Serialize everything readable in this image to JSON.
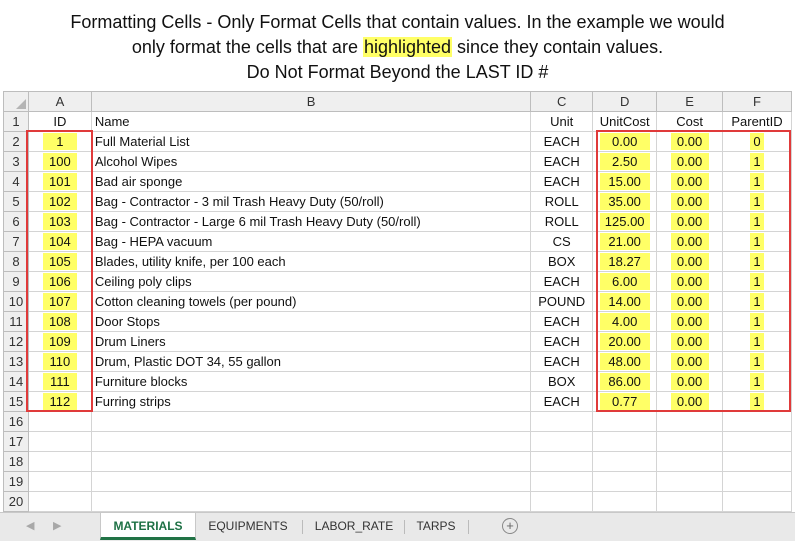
{
  "instructions": {
    "line1": "Formatting Cells -  Only Format Cells that contain values.  In the example we would",
    "line2_before": "only format the cells that are ",
    "line2_highlight": "highlighted",
    "line2_after": " since they contain values.",
    "line3": "Do Not Format Beyond the LAST ID #"
  },
  "colors": {
    "highlight": "#ffff66",
    "callout_border": "#e03a3a",
    "active_tab": "#217346"
  },
  "columns": [
    "A",
    "B",
    "C",
    "D",
    "E",
    "F"
  ],
  "headers": {
    "id": "ID",
    "name": "Name",
    "unit": "Unit",
    "unitcost": "UnitCost",
    "cost": "Cost",
    "parentid": "ParentID"
  },
  "rows": [
    {
      "n": "2",
      "id": "1",
      "name": "Full Material List",
      "unit": "EACH",
      "unitcost": "0.00",
      "cost": "0.00",
      "parentid": "0"
    },
    {
      "n": "3",
      "id": "100",
      "name": "Alcohol Wipes",
      "unit": "EACH",
      "unitcost": "2.50",
      "cost": "0.00",
      "parentid": "1"
    },
    {
      "n": "4",
      "id": "101",
      "name": "Bad air sponge",
      "unit": "EACH",
      "unitcost": "15.00",
      "cost": "0.00",
      "parentid": "1"
    },
    {
      "n": "5",
      "id": "102",
      "name": "Bag - Contractor - 3 mil Trash Heavy Duty (50/roll)",
      "unit": "ROLL",
      "unitcost": "35.00",
      "cost": "0.00",
      "parentid": "1"
    },
    {
      "n": "6",
      "id": "103",
      "name": "Bag - Contractor - Large 6 mil Trash Heavy Duty (50/roll)",
      "unit": "ROLL",
      "unitcost": "125.00",
      "cost": "0.00",
      "parentid": "1"
    },
    {
      "n": "7",
      "id": "104",
      "name": "Bag - HEPA vacuum",
      "unit": "CS",
      "unitcost": "21.00",
      "cost": "0.00",
      "parentid": "1"
    },
    {
      "n": "8",
      "id": "105",
      "name": "Blades, utility knife, per 100 each",
      "unit": "BOX",
      "unitcost": "18.27",
      "cost": "0.00",
      "parentid": "1"
    },
    {
      "n": "9",
      "id": "106",
      "name": "Ceiling poly clips",
      "unit": "EACH",
      "unitcost": "6.00",
      "cost": "0.00",
      "parentid": "1"
    },
    {
      "n": "10",
      "id": "107",
      "name": "Cotton cleaning towels (per pound)",
      "unit": "POUND",
      "unitcost": "14.00",
      "cost": "0.00",
      "parentid": "1"
    },
    {
      "n": "11",
      "id": "108",
      "name": "Door Stops",
      "unit": "EACH",
      "unitcost": "4.00",
      "cost": "0.00",
      "parentid": "1"
    },
    {
      "n": "12",
      "id": "109",
      "name": "Drum Liners",
      "unit": "EACH",
      "unitcost": "20.00",
      "cost": "0.00",
      "parentid": "1"
    },
    {
      "n": "13",
      "id": "110",
      "name": "Drum, Plastic DOT 34, 55 gallon",
      "unit": "EACH",
      "unitcost": "48.00",
      "cost": "0.00",
      "parentid": "1"
    },
    {
      "n": "14",
      "id": "111",
      "name": "Furniture blocks",
      "unit": "BOX",
      "unitcost": "86.00",
      "cost": "0.00",
      "parentid": "1"
    },
    {
      "n": "15",
      "id": "112",
      "name": "Furring strips",
      "unit": "EACH",
      "unitcost": "0.77",
      "cost": "0.00",
      "parentid": "1"
    }
  ],
  "empty_rows": [
    "16",
    "17",
    "18",
    "19",
    "20"
  ],
  "tabs": [
    "MATERIALS",
    "EQUIPMENTS",
    "LABOR_RATE",
    "TARPS"
  ],
  "active_tab": "MATERIALS",
  "icons": {
    "prev_sheet": "◀",
    "next_sheet": "▶",
    "add_sheet": "+"
  }
}
